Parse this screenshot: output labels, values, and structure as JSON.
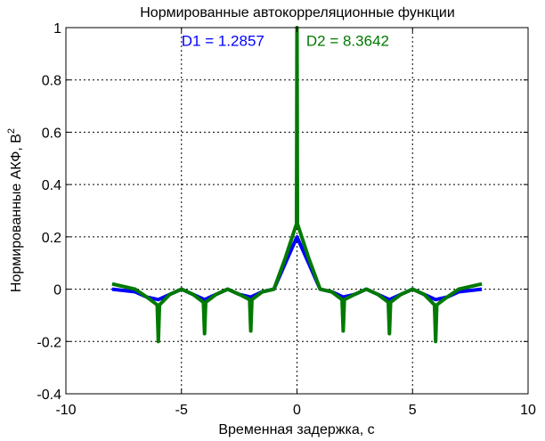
{
  "chart_data": {
    "type": "line",
    "title": "Нормированные автокорреляционные функции",
    "xlabel": "Временная задержка, с",
    "ylabel": "Нормированные АКФ, В",
    "ylabel_superscript": "2",
    "xlim": [
      -10,
      10
    ],
    "ylim": [
      -0.4,
      1
    ],
    "xticks": [
      -10,
      -5,
      0,
      5,
      10
    ],
    "yticks": [
      -0.4,
      -0.2,
      0,
      0.2,
      0.4,
      0.6,
      0.8,
      1
    ],
    "xtick_labels": [
      "-10",
      "-5",
      "0",
      "5",
      "10"
    ],
    "ytick_labels": [
      "-0.4",
      "-0.2",
      "0",
      "0.2",
      "0.4",
      "0.6",
      "0.8",
      "1"
    ],
    "grid": true,
    "grid_style": "dotted",
    "annotations": [
      {
        "text": "D1 = 1.2857",
        "color": "#0000ff",
        "x": -5,
        "y": 0.95
      },
      {
        "text": "D2 = 8.3642",
        "color": "#007a00",
        "x": 0.4,
        "y": 0.95
      }
    ],
    "series": [
      {
        "color": "#0000ff",
        "x": [
          -8,
          -7,
          -6.5,
          -6,
          -5.5,
          -5,
          -4.5,
          -4,
          -3.5,
          -3,
          -2.5,
          -2,
          -1.5,
          -1,
          -0.5,
          0,
          0.5,
          1,
          1.5,
          2,
          2.5,
          3,
          3.5,
          4,
          4.5,
          5,
          5.5,
          6,
          6.5,
          7,
          8
        ],
        "y": [
          0.0,
          -0.01,
          -0.03,
          -0.04,
          -0.02,
          0.0,
          -0.02,
          -0.04,
          -0.02,
          0.0,
          -0.02,
          -0.03,
          -0.01,
          0.0,
          0.1,
          0.2,
          0.1,
          0.0,
          -0.01,
          -0.03,
          -0.02,
          0.0,
          -0.02,
          -0.04,
          -0.02,
          0.0,
          -0.02,
          -0.04,
          -0.03,
          -0.01,
          0.0
        ]
      },
      {
        "color": "#007a00",
        "x": [
          -8,
          -7,
          -6.5,
          -6.05,
          -6,
          -5.95,
          -5.5,
          -5,
          -4.5,
          -4.05,
          -4,
          -3.95,
          -3.5,
          -3,
          -2.5,
          -2.05,
          -2,
          -1.95,
          -1.5,
          -1,
          -0.5,
          -0.02,
          0,
          0.02,
          0.5,
          1,
          1.5,
          1.95,
          2,
          2.05,
          2.5,
          3,
          3.5,
          3.95,
          4,
          4.05,
          4.5,
          5,
          5.5,
          5.95,
          6,
          6.05,
          6.5,
          7,
          8
        ],
        "y": [
          0.02,
          0.0,
          -0.03,
          -0.06,
          -0.2,
          -0.06,
          -0.02,
          0.0,
          -0.02,
          -0.05,
          -0.17,
          -0.05,
          -0.02,
          0.0,
          -0.02,
          -0.04,
          -0.16,
          -0.04,
          -0.01,
          0.0,
          0.12,
          0.25,
          1.0,
          0.25,
          0.12,
          0.0,
          -0.01,
          -0.04,
          -0.16,
          -0.04,
          -0.02,
          0.0,
          -0.02,
          -0.05,
          -0.17,
          -0.05,
          -0.02,
          0.0,
          -0.02,
          -0.06,
          -0.2,
          -0.06,
          -0.03,
          0.0,
          0.02
        ]
      }
    ]
  }
}
